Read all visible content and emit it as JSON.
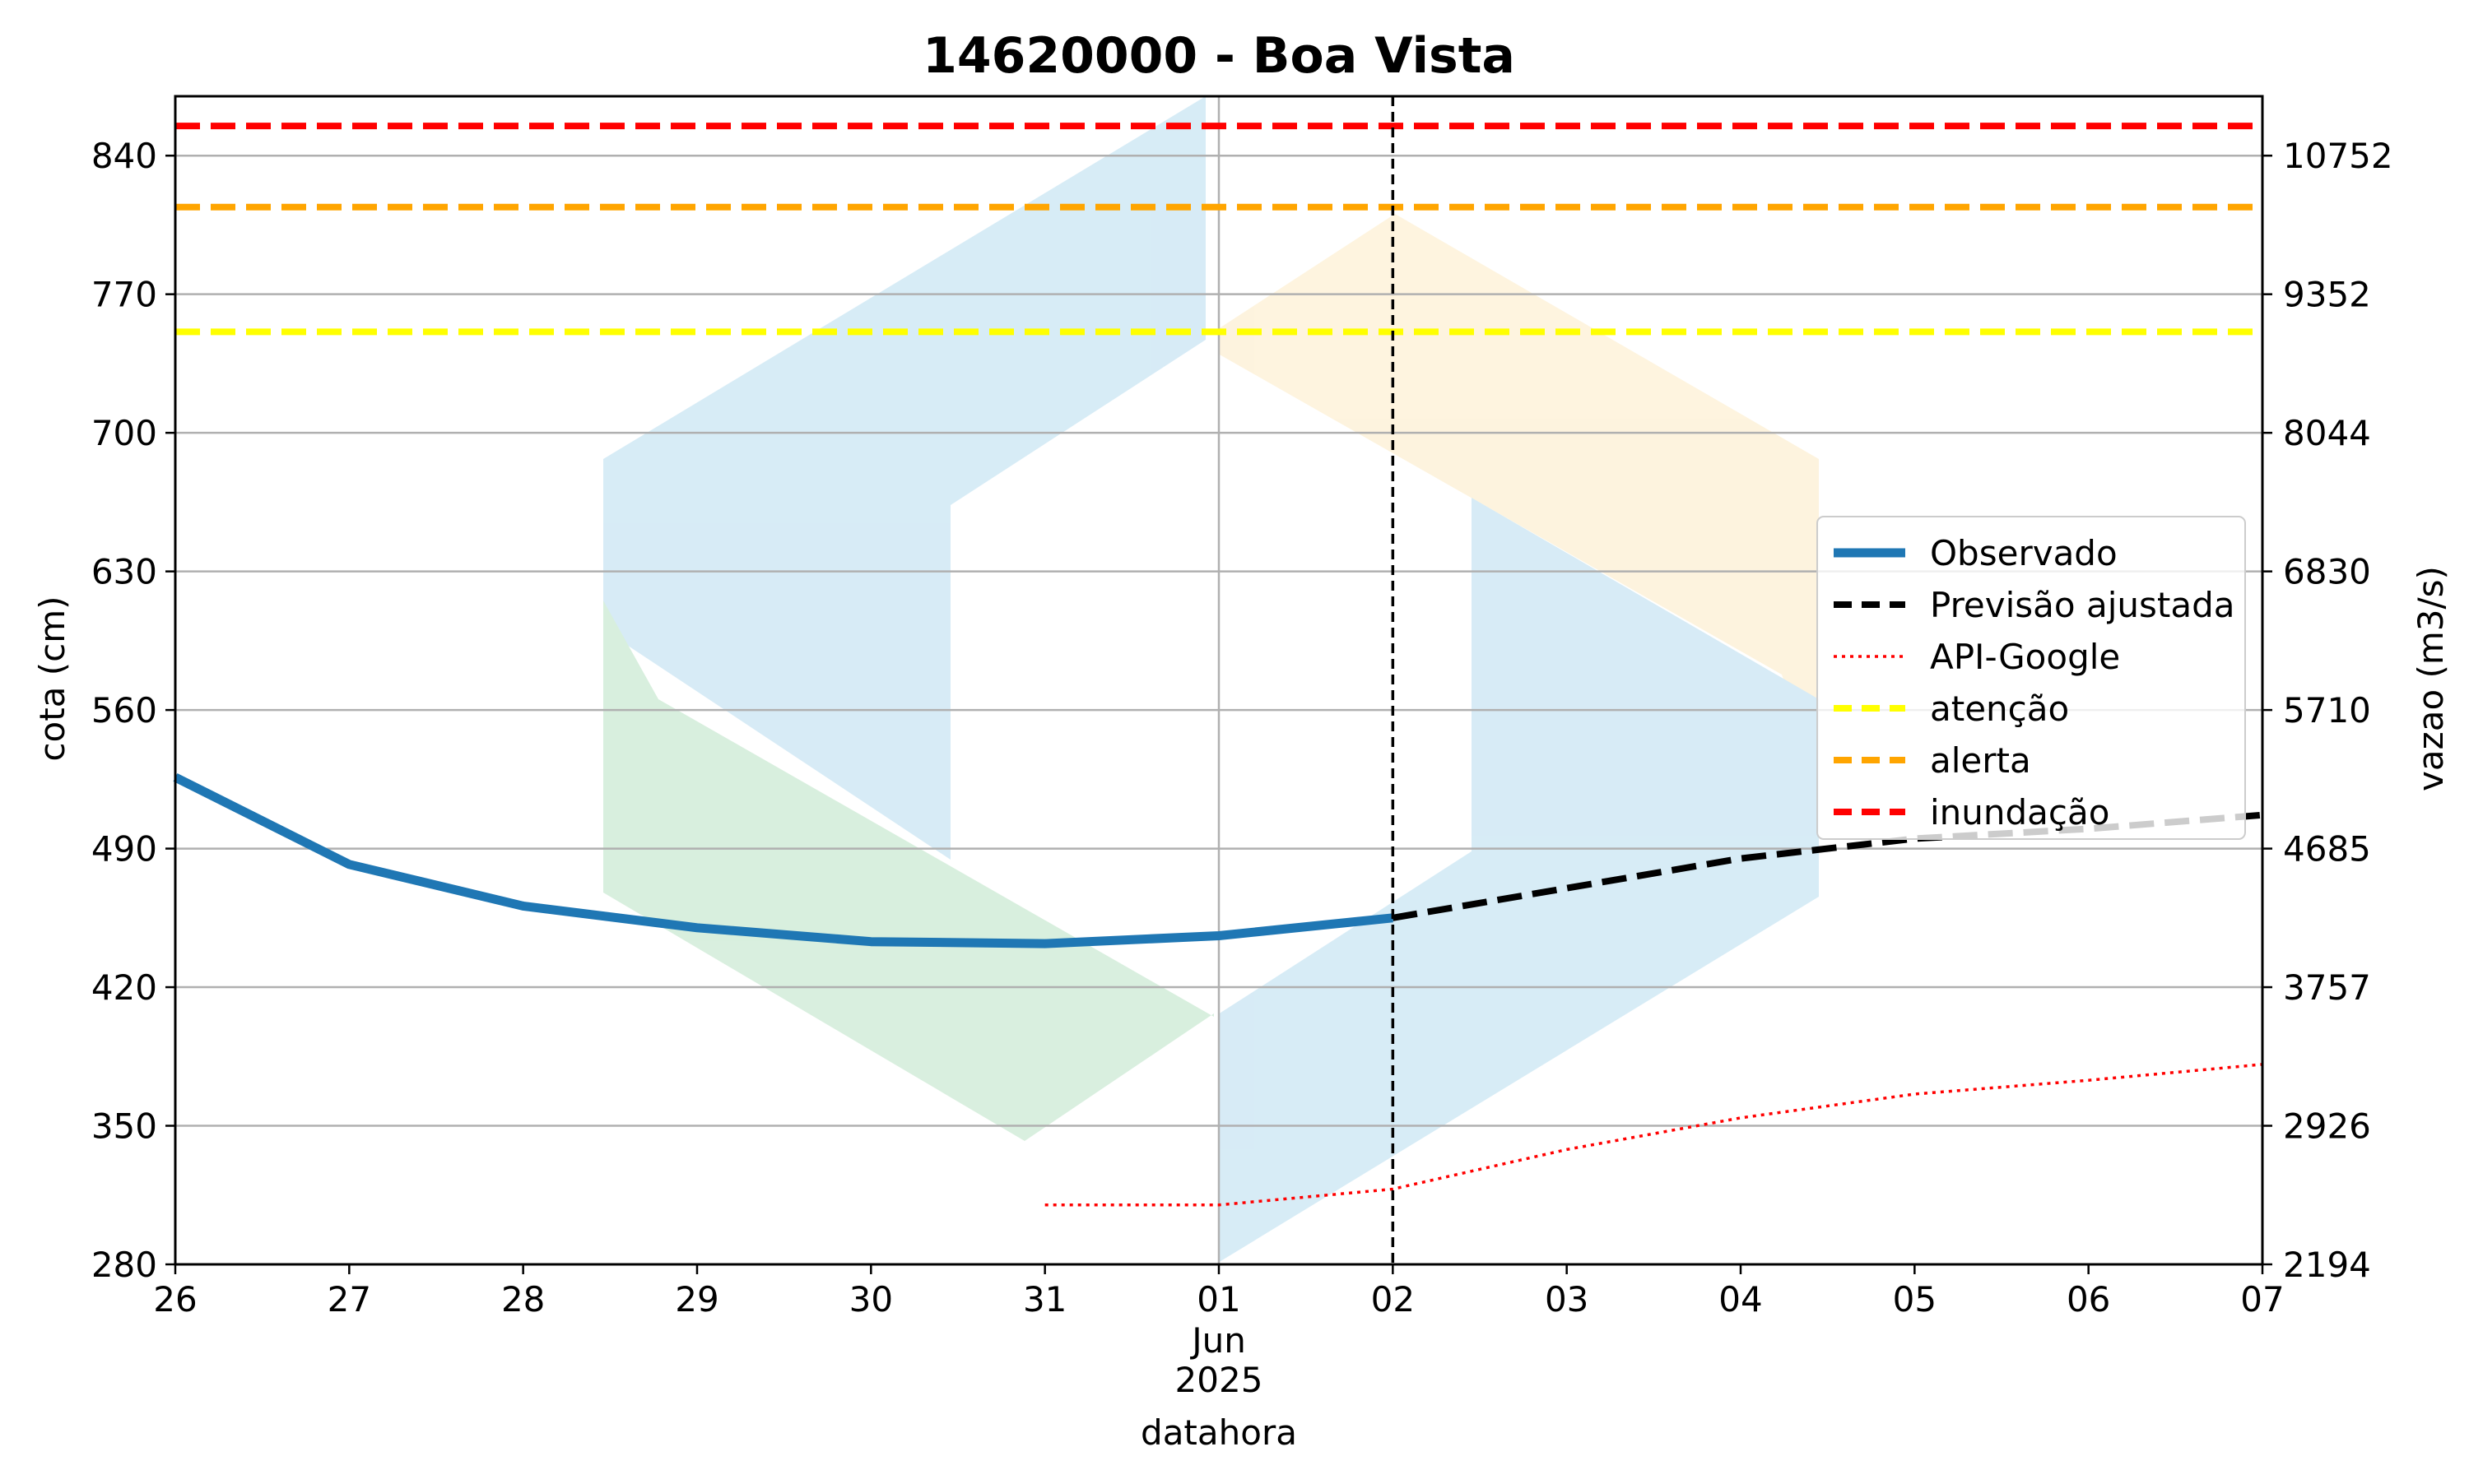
{
  "chart_data": {
    "type": "line",
    "title": "14620000 - Boa Vista",
    "xlabel": "datahora",
    "ylabel": "cota (cm)",
    "ylabel_right": "vazao (m3/s)",
    "x_ticks": [
      "26",
      "27",
      "28",
      "29",
      "30",
      "31",
      "01",
      "02",
      "03",
      "04",
      "05",
      "06",
      "07"
    ],
    "x_month_label": "Jun",
    "x_year_label": "2025",
    "x_dates": [
      "2025-05-26",
      "2025-05-27",
      "2025-05-28",
      "2025-05-29",
      "2025-05-30",
      "2025-05-31",
      "2025-06-01",
      "2025-06-02",
      "2025-06-03",
      "2025-06-04",
      "2025-06-05",
      "2025-06-06",
      "2025-06-07"
    ],
    "xlim": [
      "2025-05-26",
      "2025-06-07"
    ],
    "y_ticks": [
      280,
      350,
      420,
      490,
      560,
      630,
      700,
      770,
      840
    ],
    "y_ticks_right": [
      "2194",
      "2926",
      "3757",
      "4685",
      "5710",
      "6830",
      "8044",
      "9352",
      "10752"
    ],
    "ylim": [
      280,
      870
    ],
    "grid": true,
    "legend_position": "center-right",
    "series": [
      {
        "name": "Observado",
        "color": "#1f77b4",
        "style": "solid",
        "points": [
          [
            "2025-05-26",
            526
          ],
          [
            "2025-05-27",
            482
          ],
          [
            "2025-05-28",
            461
          ],
          [
            "2025-05-29",
            450
          ],
          [
            "2025-05-30",
            443
          ],
          [
            "2025-05-31",
            442
          ],
          [
            "2025-06-01",
            446
          ],
          [
            "2025-06-02",
            455
          ]
        ]
      },
      {
        "name": "Previsão ajustada",
        "color": "#000000",
        "style": "dashed",
        "points": [
          [
            "2025-06-02",
            455
          ],
          [
            "2025-06-03",
            470
          ],
          [
            "2025-06-04",
            485
          ],
          [
            "2025-06-05",
            495
          ],
          [
            "2025-06-06",
            500
          ],
          [
            "2025-06-07",
            507
          ]
        ]
      },
      {
        "name": "API-Google",
        "color": "#ff0000",
        "style": "dotted",
        "points": [
          [
            "2025-05-31",
            310
          ],
          [
            "2025-06-01",
            310
          ],
          [
            "2025-06-02",
            318
          ],
          [
            "2025-06-03",
            338
          ],
          [
            "2025-06-04",
            354
          ],
          [
            "2025-06-05",
            366
          ],
          [
            "2025-06-06",
            373
          ],
          [
            "2025-06-07",
            381
          ]
        ]
      }
    ],
    "thresholds": [
      {
        "name": "atenção",
        "value": 751,
        "color": "#ffff00"
      },
      {
        "name": "alerta",
        "value": 814,
        "color": "#ffa500"
      },
      {
        "name": "inundação",
        "value": 855,
        "color": "#ff0000"
      }
    ],
    "current_time_marker": "2025-06-02"
  }
}
